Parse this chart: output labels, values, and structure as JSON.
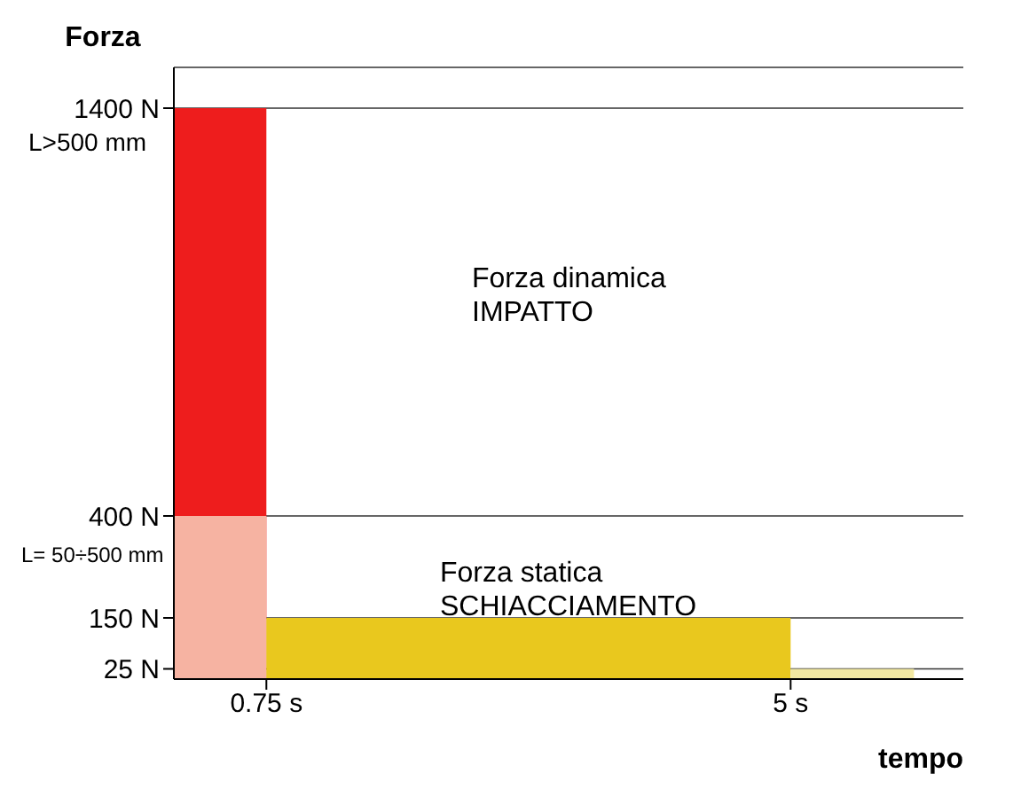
{
  "chart_data": {
    "type": "area",
    "ylabel": "Forza",
    "xlabel": "tempo",
    "series": [
      {
        "color": "#ee1d1d",
        "x": [
          0,
          0.75
        ],
        "values": [
          1400,
          1400
        ]
      },
      {
        "color": "#f6b3a2",
        "x": [
          0,
          0.75
        ],
        "values": [
          400,
          400
        ]
      },
      {
        "color": "#e9c81e",
        "x": [
          0.75,
          5
        ],
        "values": [
          150,
          150
        ]
      },
      {
        "color": "#f2e8a2",
        "x": [
          5,
          6
        ],
        "values": [
          25,
          25
        ]
      }
    ],
    "xlim": [
      0,
      6.4
    ],
    "xticks": [
      {
        "value": 0.75,
        "label": "0.75 s"
      },
      {
        "value": 5,
        "label": "5 s"
      }
    ],
    "ylim": [
      0,
      1500
    ],
    "yticks": [
      {
        "value": 25,
        "label": "25 N"
      },
      {
        "value": 150,
        "label": "150 N"
      },
      {
        "value": 400,
        "label": "400 N"
      },
      {
        "value": 1400,
        "label": "1400 N"
      }
    ],
    "grid": "y",
    "annotations": [
      "L>500 mm",
      "L= 50÷500 mm",
      "Forza dinamica\nIMPATTO",
      "Forza statica\nSCHIACCIAMENTO"
    ]
  }
}
